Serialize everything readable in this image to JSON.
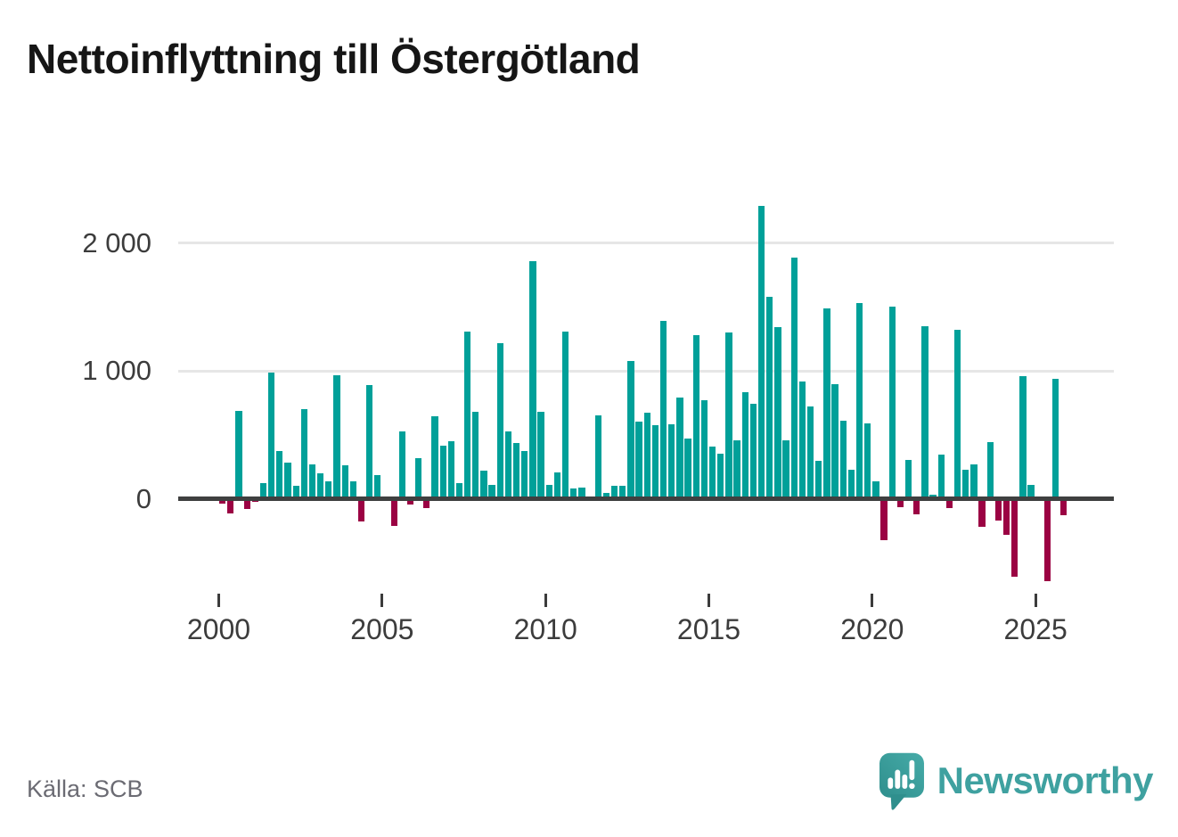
{
  "title": "Nettoinflyttning till Östergötland",
  "source": "Källa: SCB",
  "logo": {
    "text": "Newsworthy"
  },
  "colors": {
    "positive_bar": "#00a099",
    "negative_bar": "#9b0243",
    "axis_line": "#3f4040",
    "gridline": "#e6e6e6",
    "tick_label": "#3c3c3c",
    "source_text": "#6b6b73",
    "logo_teal": "#3fa1a0"
  },
  "chart_data": {
    "type": "bar",
    "title": "Nettoinflyttning till Östergötland",
    "start_year": 2000,
    "values_per_year": 4,
    "values": [
      -35,
      -117,
      685,
      -82,
      -21,
      121,
      985,
      374,
      280,
      103,
      700,
      270,
      200,
      135,
      965,
      262,
      135,
      -175,
      890,
      185,
      0,
      -216,
      528,
      -47,
      317,
      -75,
      645,
      418,
      453,
      120,
      1305,
      680,
      218,
      108,
      1220,
      525,
      437,
      374,
      1860,
      682,
      107,
      205,
      1310,
      82,
      90,
      0,
      655,
      44,
      103,
      98,
      1075,
      600,
      675,
      577,
      1390,
      580,
      790,
      470,
      1280,
      770,
      405,
      355,
      1300,
      455,
      835,
      745,
      2290,
      1580,
      1345,
      460,
      1885,
      915,
      720,
      297,
      1490,
      895,
      612,
      225,
      1530,
      590,
      135,
      -325,
      1500,
      -66,
      300,
      -123,
      1350,
      31,
      348,
      -71,
      1325,
      227,
      267,
      -222,
      440,
      -168,
      -280,
      -612,
      958,
      105,
      19,
      -647,
      940,
      -129
    ],
    "x_tick_labels": [
      "2000",
      "2005",
      "2010",
      "2015",
      "2020",
      "2025"
    ],
    "y_ticks": [
      {
        "value": 0,
        "label": "0"
      },
      {
        "value": 1000,
        "label": "1 000"
      },
      {
        "value": 2000,
        "label": "2 000"
      }
    ],
    "ylim": [
      -700,
      2400
    ],
    "grid": "horizontal-only",
    "legend": "none"
  }
}
